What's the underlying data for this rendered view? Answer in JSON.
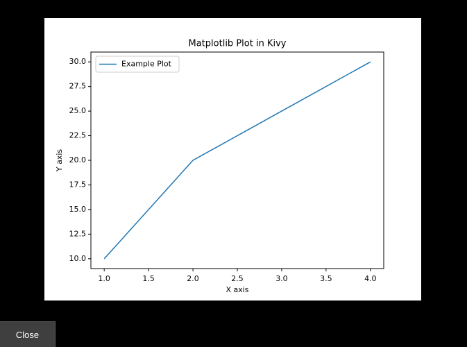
{
  "chart_data": {
    "type": "line",
    "title": "Matplotlib Plot in Kivy",
    "xlabel": "X axis",
    "ylabel": "Y axis",
    "x": [
      1,
      2,
      3,
      4
    ],
    "series": [
      {
        "name": "Example Plot",
        "color": "#1f77b4",
        "values": [
          10,
          20,
          25,
          30
        ]
      }
    ],
    "xlim": [
      0.85,
      4.15
    ],
    "xticks": [
      {
        "value": 1,
        "label": "1.0"
      },
      1.5,
      {
        "value": 2,
        "label": "2.0"
      },
      2.5,
      {
        "value": 3,
        "label": "3.0"
      },
      3.5,
      {
        "value": 4,
        "label": "4.0"
      }
    ],
    "ylim": [
      9,
      31
    ],
    "yticks": [
      {
        "value": 10,
        "label": "10.0"
      },
      12.5,
      {
        "value": 15,
        "label": "15.0"
      },
      17.5,
      {
        "value": 20,
        "label": "20.0"
      },
      22.5,
      {
        "value": 25,
        "label": "25.0"
      },
      27.5,
      {
        "value": 30,
        "label": "30.0"
      }
    ],
    "legend": "upper left",
    "grid": false
  },
  "button": {
    "label": "Close"
  }
}
